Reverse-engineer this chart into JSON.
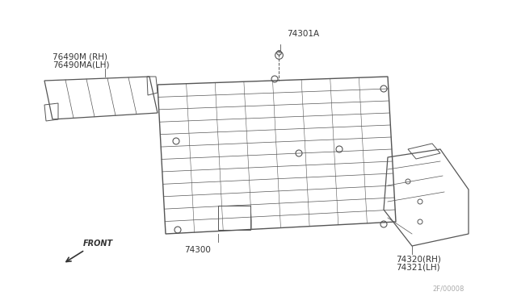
{
  "bg_color": "#ffffff",
  "title": "",
  "watermark": "2F/00008",
  "labels": {
    "part_76490M": "76490M (RH)",
    "part_76490MA": "76490MA(LH)",
    "part_74301A": "74301A",
    "part_74300": "74300",
    "part_74320": "74320(RH)",
    "part_74321": "74321(LH)",
    "front": "FRONT"
  },
  "line_color": "#555555",
  "text_color": "#333333",
  "light_gray": "#888888"
}
